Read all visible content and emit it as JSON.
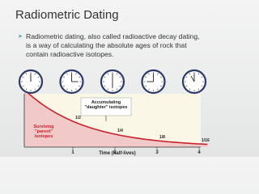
{
  "header": {
    "title": "Radiometric Dating"
  },
  "body": {
    "text": "Radiometric dating, also called radioactive decay dating, is a way of calculating the absolute ages of rock that contain radioactive isotopes."
  },
  "figure": {
    "daughter_label": "Accumulating \"daughter\" isotopes",
    "parent_label": "Surviving \"parent\" isotopes",
    "fractions": [
      "1/2",
      "1/4",
      "1/8",
      "1/16"
    ],
    "xticks": [
      "1",
      "2",
      "3",
      "4"
    ],
    "xlabel": "Time (half-lives)"
  }
}
